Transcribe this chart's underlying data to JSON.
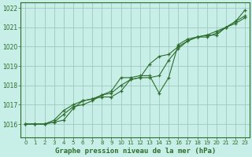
{
  "title": "Graphe pression niveau de la mer (hPa)",
  "bg_color": "#c8eee8",
  "grid_color": "#a0c8c0",
  "line_color": "#2d6e2d",
  "marker_color": "#2d6e2d",
  "xlim": [
    -0.5,
    23.5
  ],
  "ylim": [
    1015.3,
    1022.3
  ],
  "yticks": [
    1016,
    1017,
    1018,
    1019,
    1020,
    1021,
    1022
  ],
  "xticks": [
    0,
    1,
    2,
    3,
    4,
    5,
    6,
    7,
    8,
    9,
    10,
    11,
    12,
    13,
    14,
    15,
    16,
    17,
    18,
    19,
    20,
    21,
    22,
    23
  ],
  "series": [
    [
      1016.0,
      1016.0,
      1016.0,
      1016.1,
      1016.2,
      1016.8,
      1017.2,
      1017.3,
      1017.4,
      1017.4,
      1017.7,
      1018.3,
      1018.4,
      1019.1,
      1019.5,
      1019.6,
      1020.0,
      1020.3,
      1020.5,
      1020.5,
      1020.7,
      1021.0,
      1021.3,
      1021.6
    ],
    [
      1016.0,
      1016.0,
      1016.0,
      1016.1,
      1016.5,
      1016.9,
      1017.0,
      1017.2,
      1017.5,
      1017.6,
      1018.0,
      1018.3,
      1018.4,
      1018.4,
      1018.5,
      1019.3,
      1019.9,
      1020.3,
      1020.5,
      1020.6,
      1020.6,
      1021.0,
      1021.2,
      1021.5
    ],
    [
      1016.0,
      1016.0,
      1016.0,
      1016.2,
      1016.7,
      1017.0,
      1017.2,
      1017.3,
      1017.5,
      1017.7,
      1018.4,
      1018.4,
      1018.5,
      1018.5,
      1017.6,
      1018.4,
      1020.1,
      1020.4,
      1020.5,
      1020.6,
      1020.8,
      1021.0,
      1021.3,
      1021.9
    ]
  ]
}
